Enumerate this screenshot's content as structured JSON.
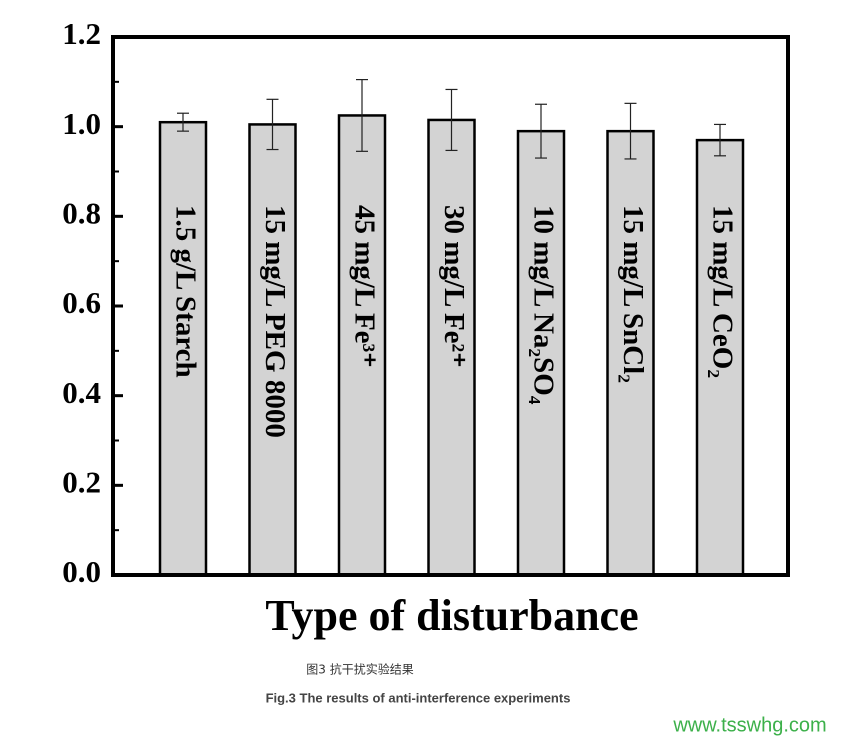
{
  "chart_data": {
    "type": "bar",
    "x_label": "Type of disturbance",
    "categories": [
      "1.5 g/L Starch",
      "15 mg/L PEG 8000",
      "45 mg/L Fe³⁺",
      "30 mg/L Fe²⁺",
      "10 mg/L Na₂SO₄",
      "15 mg/L SnCl₂",
      "15 mg/L CeO₂"
    ],
    "values": [
      1.01,
      1.005,
      1.025,
      1.015,
      0.99,
      0.99,
      0.97
    ],
    "errors": [
      0.02,
      0.056,
      0.08,
      0.068,
      0.06,
      0.062,
      0.035
    ],
    "color": "#d3d3d3",
    "ylim": [
      0,
      1.2
    ],
    "yticks": [
      {
        "value": 0,
        "label": "0.0"
      },
      0.2,
      0.4,
      0.6,
      0.8,
      {
        "value": 1,
        "label": "1.0"
      },
      1.2
    ],
    "yminorticks": [
      0.1,
      0.3,
      0.5,
      0.7,
      0.9,
      1.1
    ]
  },
  "caption_cn": "图3 抗干扰实验结果",
  "caption_en": "Fig.3 The results of anti-interference experiments",
  "watermark": "www.tsswhg.com"
}
